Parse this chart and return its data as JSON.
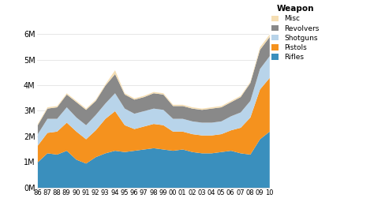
{
  "year_labels": [
    "86",
    "87",
    "88",
    "89",
    "90",
    "91",
    "92",
    "93",
    "94",
    "95",
    "96",
    "97",
    "98",
    "99",
    "00",
    "01",
    "02",
    "03",
    "04",
    "05",
    "06",
    "07",
    "08",
    "09",
    "10"
  ],
  "Rifles": [
    1000000,
    1350000,
    1300000,
    1450000,
    1100000,
    950000,
    1200000,
    1350000,
    1450000,
    1400000,
    1450000,
    1500000,
    1550000,
    1500000,
    1450000,
    1500000,
    1400000,
    1350000,
    1350000,
    1400000,
    1450000,
    1350000,
    1300000,
    1900000,
    2200000
  ],
  "Pistols": [
    650000,
    800000,
    900000,
    1100000,
    1100000,
    950000,
    1050000,
    1350000,
    1550000,
    1050000,
    850000,
    900000,
    950000,
    950000,
    750000,
    700000,
    700000,
    700000,
    700000,
    700000,
    800000,
    1000000,
    1450000,
    1950000,
    2100000
  ],
  "Shotguns": [
    450000,
    550000,
    500000,
    600000,
    550000,
    550000,
    600000,
    600000,
    700000,
    650000,
    600000,
    600000,
    600000,
    600000,
    500000,
    500000,
    500000,
    500000,
    500000,
    500000,
    550000,
    600000,
    650000,
    800000,
    850000
  ],
  "Revolvers": [
    350000,
    400000,
    450000,
    500000,
    600000,
    600000,
    550000,
    700000,
    750000,
    550000,
    550000,
    550000,
    600000,
    600000,
    500000,
    500000,
    500000,
    500000,
    550000,
    550000,
    550000,
    600000,
    700000,
    750000,
    750000
  ],
  "Misc": [
    50000,
    50000,
    50000,
    50000,
    50000,
    50000,
    50000,
    50000,
    150000,
    50000,
    50000,
    50000,
    50000,
    50000,
    50000,
    50000,
    50000,
    50000,
    50000,
    50000,
    50000,
    50000,
    50000,
    100000,
    100000
  ],
  "colors": {
    "Rifles": "#3a8fbd",
    "Pistols": "#f5921e",
    "Shotguns": "#b8d4ea",
    "Revolvers": "#898989",
    "Misc": "#f5deb3"
  },
  "legend_order": [
    "Misc",
    "Revolvers",
    "Shotguns",
    "Pistols",
    "Rifles"
  ],
  "stack_order": [
    "Rifles",
    "Pistols",
    "Shotguns",
    "Revolvers",
    "Misc"
  ],
  "legend_title": "Weapon",
  "ylim": [
    0,
    7000000
  ],
  "yticks": [
    0,
    1000000,
    2000000,
    3000000,
    4000000,
    5000000,
    6000000
  ],
  "ytick_labels": [
    "0M",
    "1M",
    "2M",
    "3M",
    "4M",
    "5M",
    "6M"
  ],
  "plot_bg": "#ffffff"
}
